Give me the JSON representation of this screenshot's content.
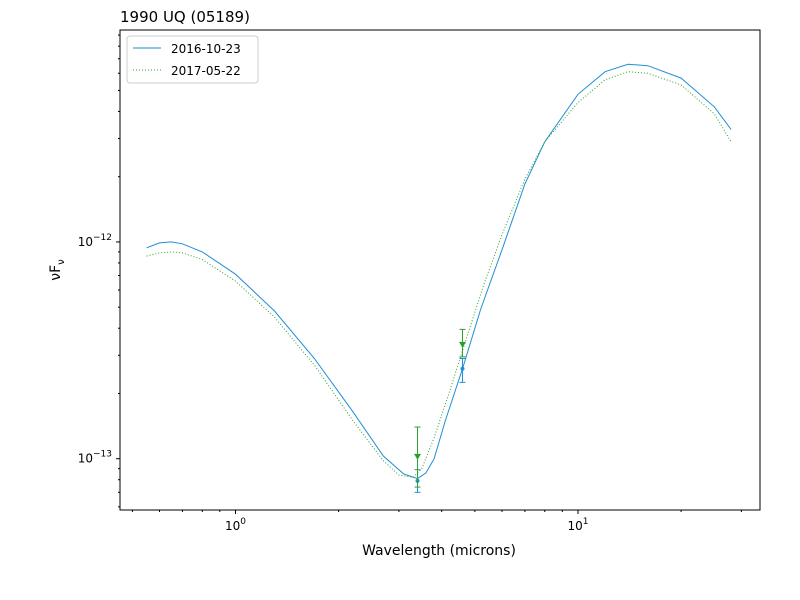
{
  "chart_data": {
    "type": "line",
    "title": "1990 UQ (05189)",
    "xlabel": "Wavelength (microns)",
    "ylabel": "νF",
    "ylabel_sub": "ν",
    "x_scale": "log",
    "y_scale": "log",
    "xlim": [
      0.46,
      34
    ],
    "ylim": [
      5.8e-14,
      9.5e-12
    ],
    "grid": false,
    "legend_position": "upper left",
    "x_ticks": [
      {
        "value": 1,
        "base": "10",
        "exp": "0"
      },
      {
        "value": 10,
        "base": "10",
        "exp": "1"
      }
    ],
    "y_ticks": [
      {
        "value": 1e-13,
        "base": "10",
        "exp": "−13"
      },
      {
        "value": 1e-12,
        "base": "10",
        "exp": "−12"
      }
    ],
    "series": [
      {
        "name": "2016-10-23",
        "color": "#1f8fd6",
        "style": "solid",
        "x": [
          0.55,
          0.6,
          0.65,
          0.7,
          0.8,
          1.0,
          1.3,
          1.7,
          2.2,
          2.7,
          3.1,
          3.4,
          3.6,
          3.8,
          4.1,
          4.6,
          5.2,
          6.0,
          7.0,
          8.0,
          10.0,
          12.0,
          14.0,
          16.0,
          20.0,
          25.0,
          28.0
        ],
        "y": [
          9.4e-13,
          9.9e-13,
          1e-12,
          9.8e-13,
          9e-13,
          7.1e-13,
          4.8e-13,
          2.9e-13,
          1.65e-13,
          1.03e-13,
          8.5e-14,
          8.1e-14,
          8.6e-14,
          1e-13,
          1.5e-13,
          2.6e-13,
          4.9e-13,
          9.2e-13,
          1.85e-12,
          2.9e-12,
          4.8e-12,
          6.1e-12,
          6.6e-12,
          6.5e-12,
          5.7e-12,
          4.2e-12,
          3.3e-12
        ]
      },
      {
        "name": "2017-05-22",
        "color": "#2ca02c",
        "style": "dotted",
        "x": [
          0.55,
          0.6,
          0.65,
          0.7,
          0.8,
          1.0,
          1.3,
          1.7,
          2.2,
          2.7,
          3.0,
          3.3,
          3.5,
          3.8,
          4.2,
          4.7,
          5.3,
          6.0,
          7.0,
          8.0,
          10.0,
          12.0,
          14.0,
          16.0,
          20.0,
          25.0,
          28.0
        ],
        "y": [
          8.6e-13,
          8.9e-13,
          9e-13,
          8.9e-13,
          8.3e-13,
          6.6e-13,
          4.5e-13,
          2.7e-13,
          1.5e-13,
          9.8e-14,
          8.4e-14,
          8.2e-14,
          9e-14,
          1.25e-13,
          2e-13,
          3.5e-13,
          6.3e-13,
          1.08e-12,
          1.95e-12,
          2.9e-12,
          4.4e-12,
          5.6e-12,
          6.1e-12,
          6e-12,
          5.3e-12,
          3.9e-12,
          2.9e-12
        ]
      }
    ],
    "measurements": [
      {
        "series": "2016-10-23",
        "marker": "dot",
        "x": 3.4,
        "y": 7.9e-14,
        "ylow": 7e-14,
        "yhigh": 8.9e-14
      },
      {
        "series": "2016-10-23",
        "marker": "dot",
        "x": 4.6,
        "y": 2.6e-13,
        "ylow": 2.25e-13,
        "yhigh": 2.9e-13
      },
      {
        "series": "2017-05-22",
        "marker": "triangle-down",
        "x": 3.4,
        "y": 1.02e-13,
        "ylow": 7.4e-14,
        "yhigh": 1.4e-13
      },
      {
        "series": "2017-05-22",
        "marker": "triangle-down",
        "x": 4.6,
        "y": 3.35e-13,
        "ylow": 2.95e-13,
        "yhigh": 3.95e-13
      }
    ]
  }
}
